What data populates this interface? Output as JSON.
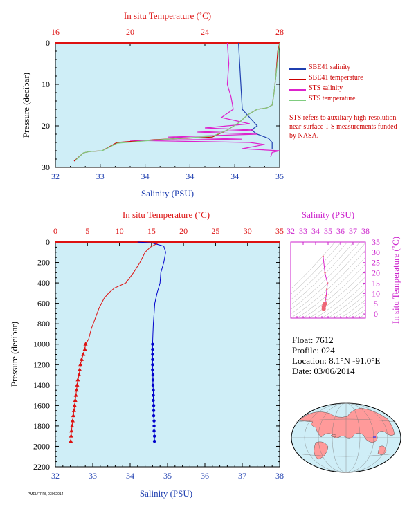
{
  "chart_data": [
    {
      "id": "near-surface",
      "type": "line",
      "xlabel": "Salinity (PSU)",
      "x2label": "In situ Temperature (˚C)",
      "ylabel": "Pressure (decibar)",
      "xlim": [
        32,
        35
      ],
      "xtick_labels": [
        "32",
        "33",
        "34",
        "34",
        "34",
        "35"
      ],
      "x2lim": [
        16,
        28
      ],
      "x2ticks": [
        16,
        20,
        24,
        28
      ],
      "ylim": [
        0,
        30
      ],
      "yticks": [
        0,
        10,
        20,
        30
      ],
      "grid": false,
      "legend_position": "right",
      "series": [
        {
          "name": "SBE41 salinity",
          "color": "#1f3fb0",
          "axis": "salinity",
          "points": [
            [
              34.45,
              0
            ],
            [
              34.5,
              16
            ],
            [
              34.6,
              18
            ],
            [
              34.7,
              20
            ],
            [
              34.62,
              21
            ],
            [
              34.7,
              22
            ],
            [
              34.85,
              23
            ],
            [
              34.9,
              24
            ],
            [
              34.9,
              25.5
            ]
          ]
        },
        {
          "name": "SBE41 temperature",
          "color": "#cc0000",
          "axis": "temperature",
          "points": [
            [
              28,
              0
            ],
            [
              27.9,
              2
            ],
            [
              27.8,
              8
            ],
            [
              27.7,
              12
            ],
            [
              27.6,
              15
            ],
            [
              27.3,
              15.7
            ],
            [
              26.8,
              16
            ],
            [
              26.3,
              17.3
            ],
            [
              25.8,
              19.3
            ],
            [
              25.2,
              21
            ],
            [
              24.4,
              22.7
            ],
            [
              21.4,
              23.3
            ],
            [
              19.3,
              24
            ],
            [
              18.5,
              26
            ],
            [
              17.8,
              26.2
            ],
            [
              17.5,
              26.5
            ],
            [
              17.0,
              28.5
            ]
          ]
        },
        {
          "name": "STS salinity",
          "color": "#dd22cc",
          "axis": "salinity",
          "points": [
            [
              34.3,
              0
            ],
            [
              34.32,
              5
            ],
            [
              34.3,
              10
            ],
            [
              34.35,
              13
            ],
            [
              34.38,
              16
            ],
            [
              34.22,
              18
            ],
            [
              34.6,
              19.5
            ],
            [
              34.0,
              20.5
            ],
            [
              34.65,
              21
            ],
            [
              33.9,
              21.5
            ],
            [
              34.7,
              22
            ],
            [
              33.5,
              22.7
            ],
            [
              34.5,
              23.2
            ],
            [
              33.0,
              23.5
            ],
            [
              34.6,
              24
            ],
            [
              34.8,
              24.5
            ],
            [
              34.5,
              25.5
            ],
            [
              35.0,
              26
            ],
            [
              34.9,
              26.4
            ],
            [
              34.88,
              27.5
            ]
          ]
        },
        {
          "name": "STS temperature",
          "color": "#7fcc7f",
          "axis": "temperature",
          "points": [
            [
              28,
              0
            ],
            [
              27.95,
              2
            ],
            [
              27.8,
              8
            ],
            [
              27.7,
              12
            ],
            [
              27.6,
              15
            ],
            [
              27.3,
              15.7
            ],
            [
              26.8,
              16
            ],
            [
              26.3,
              17.3
            ],
            [
              25.8,
              19.3
            ],
            [
              25.2,
              21
            ],
            [
              24.4,
              22.5
            ],
            [
              21.4,
              23.4
            ],
            [
              19.3,
              24.2
            ],
            [
              18.5,
              26
            ],
            [
              17.8,
              26.2
            ],
            [
              17.5,
              26.5
            ],
            [
              17.05,
              28.4
            ]
          ]
        }
      ],
      "annotation": "STS refers to auxiliary high-resolution near-surface T-S measurements funded by NASA."
    },
    {
      "id": "full-profile",
      "type": "line",
      "xlabel": "Salinity (PSU)",
      "x2label": "In situ Temperature (˚C)",
      "ylabel": "Pressure (decibar)",
      "xlim": [
        32,
        38
      ],
      "xticks": [
        32,
        33,
        34,
        35,
        36,
        37,
        38
      ],
      "x2lim": [
        0,
        35
      ],
      "x2ticks": [
        0,
        5,
        10,
        15,
        20,
        25,
        30,
        35
      ],
      "ylim": [
        0,
        2200
      ],
      "yticks": [
        0,
        200,
        400,
        600,
        800,
        1000,
        1200,
        1400,
        1600,
        1800,
        2000,
        2200
      ],
      "grid": false,
      "series": [
        {
          "axis": "salinity",
          "color": "#0000cc",
          "marker": "circle",
          "points": [
            [
              34.2,
              0
            ],
            [
              34.6,
              10
            ],
            [
              34.9,
              40
            ],
            [
              34.95,
              100
            ],
            [
              34.9,
              200
            ],
            [
              34.82,
              300
            ],
            [
              34.8,
              400
            ],
            [
              34.72,
              500
            ],
            [
              34.66,
              600
            ],
            [
              34.64,
              700
            ],
            [
              34.62,
              800
            ],
            [
              34.61,
              900
            ],
            [
              34.6,
              1000
            ],
            [
              34.6,
              1050
            ],
            [
              34.6,
              1100
            ],
            [
              34.6,
              1150
            ],
            [
              34.6,
              1200
            ],
            [
              34.6,
              1250
            ],
            [
              34.61,
              1300
            ],
            [
              34.61,
              1350
            ],
            [
              34.61,
              1400
            ],
            [
              34.62,
              1450
            ],
            [
              34.62,
              1500
            ],
            [
              34.62,
              1550
            ],
            [
              34.63,
              1600
            ],
            [
              34.63,
              1650
            ],
            [
              34.63,
              1700
            ],
            [
              34.64,
              1750
            ],
            [
              34.64,
              1800
            ],
            [
              34.64,
              1850
            ],
            [
              34.65,
              1900
            ],
            [
              34.65,
              1950
            ]
          ],
          "markers_from_pressure": 1000
        },
        {
          "axis": "temperature",
          "color": "#dd1111",
          "marker": "triangle",
          "points": [
            [
              28,
              0
            ],
            [
              16,
              10
            ],
            [
              14.8,
              50
            ],
            [
              14,
              100
            ],
            [
              13.2,
              200
            ],
            [
              12.2,
              300
            ],
            [
              11,
              400
            ],
            [
              9.2,
              450
            ],
            [
              8.3,
              500
            ],
            [
              7.6,
              550
            ],
            [
              6.8,
              650
            ],
            [
              6.2,
              750
            ],
            [
              5.6,
              850
            ],
            [
              5.2,
              950
            ],
            [
              4.7,
              1000
            ],
            [
              4.6,
              1050
            ],
            [
              4.35,
              1100
            ],
            [
              4.1,
              1150
            ],
            [
              3.9,
              1200
            ],
            [
              3.8,
              1250
            ],
            [
              3.7,
              1300
            ],
            [
              3.5,
              1350
            ],
            [
              3.4,
              1400
            ],
            [
              3.3,
              1450
            ],
            [
              3.2,
              1500
            ],
            [
              3.1,
              1550
            ],
            [
              3.0,
              1600
            ],
            [
              2.9,
              1650
            ],
            [
              2.8,
              1700
            ],
            [
              2.7,
              1750
            ],
            [
              2.6,
              1800
            ],
            [
              2.5,
              1850
            ],
            [
              2.45,
              1900
            ],
            [
              2.4,
              1950
            ]
          ],
          "markers_from_pressure": 1000
        }
      ]
    },
    {
      "id": "ts-diagram",
      "type": "scatter",
      "x2label": "Salinity (PSU)",
      "x2ticks": [
        32,
        33,
        34,
        35,
        36,
        37,
        38
      ],
      "xlim": [
        32,
        38
      ],
      "y2label": "In situ Temperature (˚C)",
      "yticks": [
        0,
        5,
        10,
        15,
        20,
        25,
        30,
        35
      ],
      "ylim": [
        -2,
        35
      ],
      "series": [
        {
          "color": "#dd22cc",
          "points": [
            [
              34.6,
              28
            ],
            [
              34.75,
              20
            ],
            [
              34.95,
              15
            ],
            [
              34.9,
              12
            ],
            [
              34.85,
              9
            ],
            [
              34.8,
              7
            ],
            [
              34.75,
              5
            ],
            [
              34.7,
              4.5
            ],
            [
              34.68,
              4
            ],
            [
              34.65,
              3.5
            ],
            [
              34.65,
              2.5
            ]
          ]
        }
      ]
    }
  ],
  "float_info": {
    "float": "Float: 7612",
    "profile": "Profile: 024",
    "location": "Location: 8.1°N -91.0°E",
    "date": "Date: 03/06/2014"
  },
  "map": {
    "marker_label": "float position",
    "lon": -91.0,
    "lat": 8.1
  },
  "footer": "PMEL/TPRI, 03062014"
}
